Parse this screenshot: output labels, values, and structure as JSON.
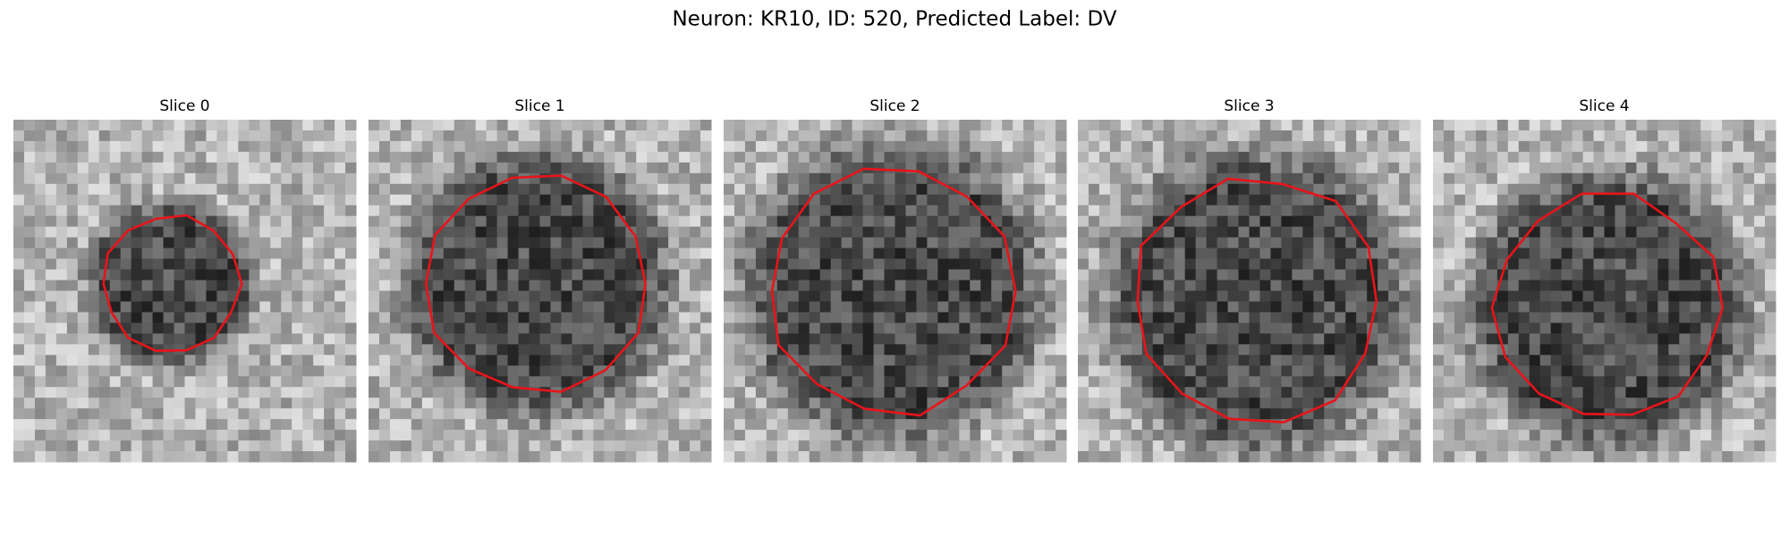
{
  "figure": {
    "title": "Neuron: KR10, ID: 520, Predicted Label: DV",
    "panels": [
      {
        "title": "Slice 0"
      },
      {
        "title": "Slice 1"
      },
      {
        "title": "Slice 2"
      },
      {
        "title": "Slice 3"
      },
      {
        "title": "Slice 4"
      }
    ]
  }
}
